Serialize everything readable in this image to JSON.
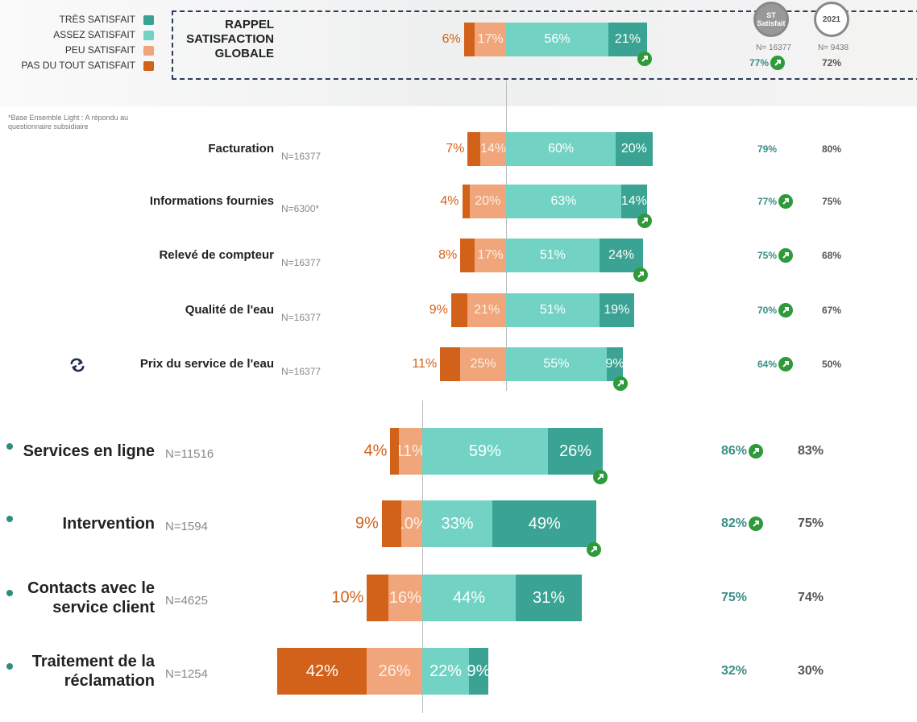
{
  "chart_data": [
    {
      "type": "bar",
      "categories": [
        "RAPPEL SATISFACTION GLOBALE"
      ],
      "series": [
        {
          "name": "TRÈS SATISFAIT",
          "color": "#3aa393",
          "values": [
            21
          ],
          "value_labels": [
            "21%"
          ]
        },
        {
          "name": "ASSEZ SATISFAIT",
          "color": "#72d3c4",
          "values": [
            56
          ],
          "value_labels": [
            "56%"
          ]
        },
        {
          "name": "PEU SATISFAIT",
          "color": "#f0a57a",
          "values": [
            17
          ],
          "value_labels": [
            "17%"
          ]
        },
        {
          "name": "PAS DU TOUT SATISFAIT",
          "color": "#d2621a",
          "values": [
            6
          ],
          "value_labels": [
            "6%"
          ]
        }
      ],
      "bar_trend_up": [
        true
      ],
      "satisfied_header": "ST Satisfait",
      "satisfied_n": "N= 16377",
      "prior_header": "2021",
      "prior_n": "N= 9438",
      "satisfied": {
        "values": [
          77
        ],
        "value_labels": [
          "77%"
        ],
        "trend_up": [
          true
        ]
      },
      "prior": {
        "values": [
          72
        ],
        "value_labels": [
          "72%"
        ]
      },
      "footnote": "*Base Ensemble Light : A répondu au questionnaire subsidiaire"
    },
    {
      "type": "bar",
      "categories": [
        "Facturation",
        "Informations fournies",
        "Relevé de compteur",
        "Qualité de l'eau",
        "Prix du service de l'eau"
      ],
      "n_labels": [
        "N=16377",
        "N=6300*",
        "N=16377",
        "N=16377",
        "N=16377"
      ],
      "series": [
        {
          "color": "#3aa393",
          "values": [
            20,
            14,
            24,
            19,
            9
          ],
          "value_labels": [
            "20%",
            "14%",
            "24%",
            "19%",
            "9%"
          ]
        },
        {
          "color": "#72d3c4",
          "values": [
            60,
            63,
            51,
            51,
            55
          ],
          "value_labels": [
            "60%",
            "63%",
            "51%",
            "51%",
            "55%"
          ]
        },
        {
          "color": "#f0a57a",
          "values": [
            14,
            20,
            17,
            21,
            25
          ],
          "value_labels": [
            "14%",
            "20%",
            "17%",
            "21%",
            "25%"
          ]
        },
        {
          "color": "#d2621a",
          "values": [
            7,
            4,
            8,
            9,
            11
          ],
          "value_labels": [
            "7%",
            "4%",
            "8%",
            "9%",
            "11%"
          ]
        }
      ],
      "bar_trend_up": [
        false,
        true,
        true,
        false,
        true
      ],
      "satisfied": {
        "values": [
          79,
          77,
          75,
          70,
          64
        ],
        "value_labels": [
          "79%",
          "77%",
          "75%",
          "70%",
          "64%"
        ],
        "trend_up": [
          false,
          true,
          true,
          true,
          true
        ]
      },
      "prior": {
        "values": [
          80,
          75,
          68,
          67,
          50
        ],
        "value_labels": [
          "80%",
          "75%",
          "68%",
          "67%",
          "50%"
        ]
      }
    },
    {
      "type": "bar",
      "categories": [
        "Services en ligne",
        "Intervention",
        "Contacts avec le service client",
        "Traitement de la réclamation"
      ],
      "n_labels": [
        "N=11516",
        "N=1594",
        "N=4625",
        "N=1254"
      ],
      "series": [
        {
          "color": "#3aa393",
          "values": [
            26,
            49,
            31,
            9
          ],
          "value_labels": [
            "26%",
            "49%",
            "31%",
            "9%"
          ]
        },
        {
          "color": "#72d3c4",
          "values": [
            59,
            33,
            44,
            22
          ],
          "value_labels": [
            "59%",
            "33%",
            "44%",
            "22%"
          ]
        },
        {
          "color": "#f0a57a",
          "values": [
            11,
            10,
            16,
            26
          ],
          "value_labels": [
            "11%",
            "10%",
            "16%",
            "26%"
          ]
        },
        {
          "color": "#d2621a",
          "values": [
            4,
            9,
            10,
            42
          ],
          "value_labels": [
            "4%",
            "9%",
            "10%",
            "42%"
          ]
        }
      ],
      "bar_trend_up": [
        true,
        true,
        false,
        false
      ],
      "satisfied": {
        "values": [
          86,
          82,
          75,
          32
        ],
        "value_labels": [
          "86%",
          "82%",
          "75%",
          "32%"
        ],
        "trend_up": [
          true,
          true,
          false,
          false
        ]
      },
      "prior": {
        "values": [
          83,
          75,
          74,
          30
        ],
        "value_labels": [
          "83%",
          "75%",
          "74%",
          "30%"
        ]
      }
    }
  ]
}
